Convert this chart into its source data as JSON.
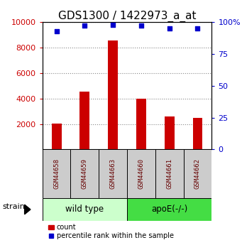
{
  "title": "GDS1300 / 1422973_a_at",
  "samples": [
    "GSM44658",
    "GSM44659",
    "GSM44663",
    "GSM44660",
    "GSM44661",
    "GSM44662"
  ],
  "counts": [
    2050,
    4550,
    8550,
    4000,
    2600,
    2450
  ],
  "percentiles": [
    93,
    97,
    98,
    97,
    95,
    95
  ],
  "bar_color": "#cc0000",
  "dot_color": "#0000cc",
  "sample_text_color": "#660000",
  "ylim_left": [
    0,
    10000
  ],
  "ylim_right": [
    0,
    100
  ],
  "yticks_left": [
    2000,
    4000,
    6000,
    8000,
    10000
  ],
  "yticks_right": [
    0,
    25,
    50,
    75,
    100
  ],
  "ytick_labels_right": [
    "0",
    "25",
    "50",
    "75",
    "100%"
  ],
  "sample_box_color": "#cccccc",
  "left_tick_color": "#cc0000",
  "right_tick_color": "#0000cc",
  "group_configs": [
    {
      "label": "wild type",
      "start": 0,
      "end": 3,
      "color": "#ccffcc"
    },
    {
      "label": "apoE(-/-)",
      "start": 3,
      "end": 6,
      "color": "#44dd44"
    }
  ],
  "title_fontsize": 11,
  "tick_fontsize": 8,
  "sample_fontsize": 6.5,
  "group_label_fontsize": 8.5,
  "strain_fontsize": 8,
  "legend_fontsize": 7
}
